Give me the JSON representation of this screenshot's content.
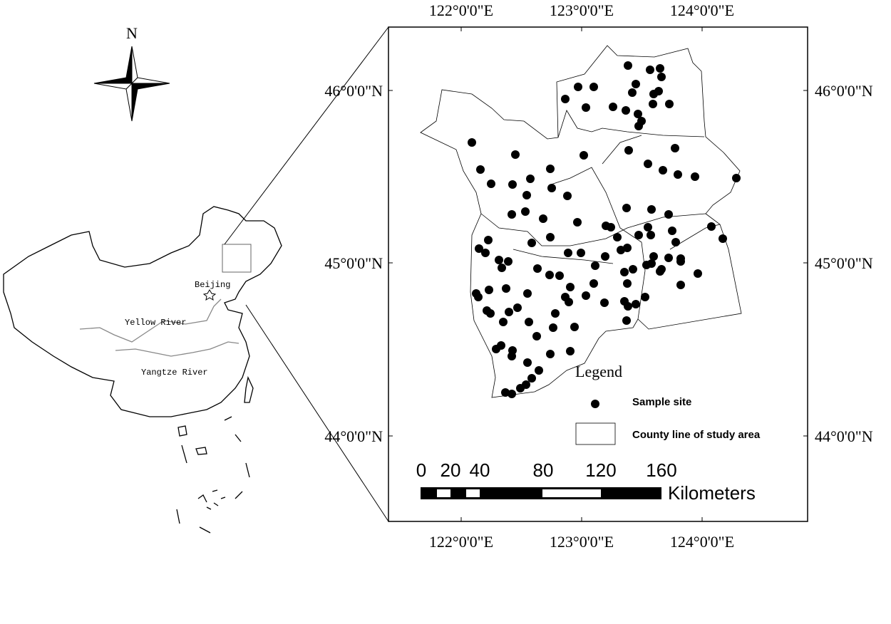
{
  "north_arrow": {
    "label": "N"
  },
  "inset_map": {
    "labels": [
      "Beijing",
      "Yellow River",
      "Yangtze River"
    ]
  },
  "study_map": {
    "top_ticks": [
      "122°0'0\"E",
      "123°0'0\"E",
      "124°0'0\"E"
    ],
    "bottom_ticks": [
      "122°0'0\"E",
      "123°0'0\"E",
      "124°0'0\"E"
    ],
    "left_ticks": [
      "46°0'0\"N",
      "45°0'0\"N",
      "44°0'0\"N"
    ],
    "right_ticks": [
      "46°0'0\"N",
      "45°0'0\"N",
      "44°0'0\"N"
    ],
    "legend": {
      "title": "Legend",
      "items": [
        "Sample site",
        "County line of study area"
      ]
    },
    "scale_bar": {
      "ticks": [
        "0",
        "20",
        "40",
        "80",
        "120",
        "160"
      ],
      "unit": "Kilometers"
    }
  }
}
